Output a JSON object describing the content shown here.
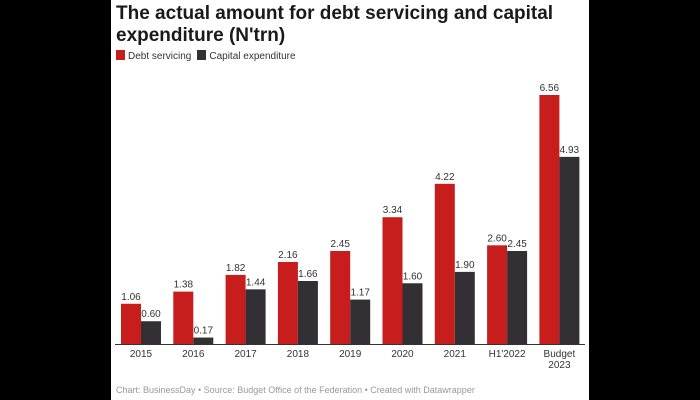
{
  "chart_data": {
    "type": "bar",
    "title": "The actual amount for debt servicing and capital expenditure (N'trn)",
    "categories": [
      "2015",
      "2016",
      "2017",
      "2018",
      "2019",
      "2020",
      "2021",
      "H1'2022",
      "Budget 2023"
    ],
    "series": [
      {
        "name": "Debt servicing",
        "color": "#c71e1d",
        "values": [
          1.06,
          1.38,
          1.82,
          2.16,
          2.45,
          3.34,
          4.22,
          2.6,
          6.56
        ]
      },
      {
        "name": "Capital expenditure",
        "color": "#323035",
        "values": [
          0.6,
          0.17,
          1.44,
          1.66,
          1.17,
          1.6,
          1.9,
          2.45,
          4.93
        ]
      }
    ],
    "ylim": [
      0,
      6.56
    ],
    "grid": false,
    "legend": "top-left",
    "data_labels": true,
    "footer": "Chart: BusinessDay • Source: Budget Office of the Federation • Created with Datawrapper"
  }
}
